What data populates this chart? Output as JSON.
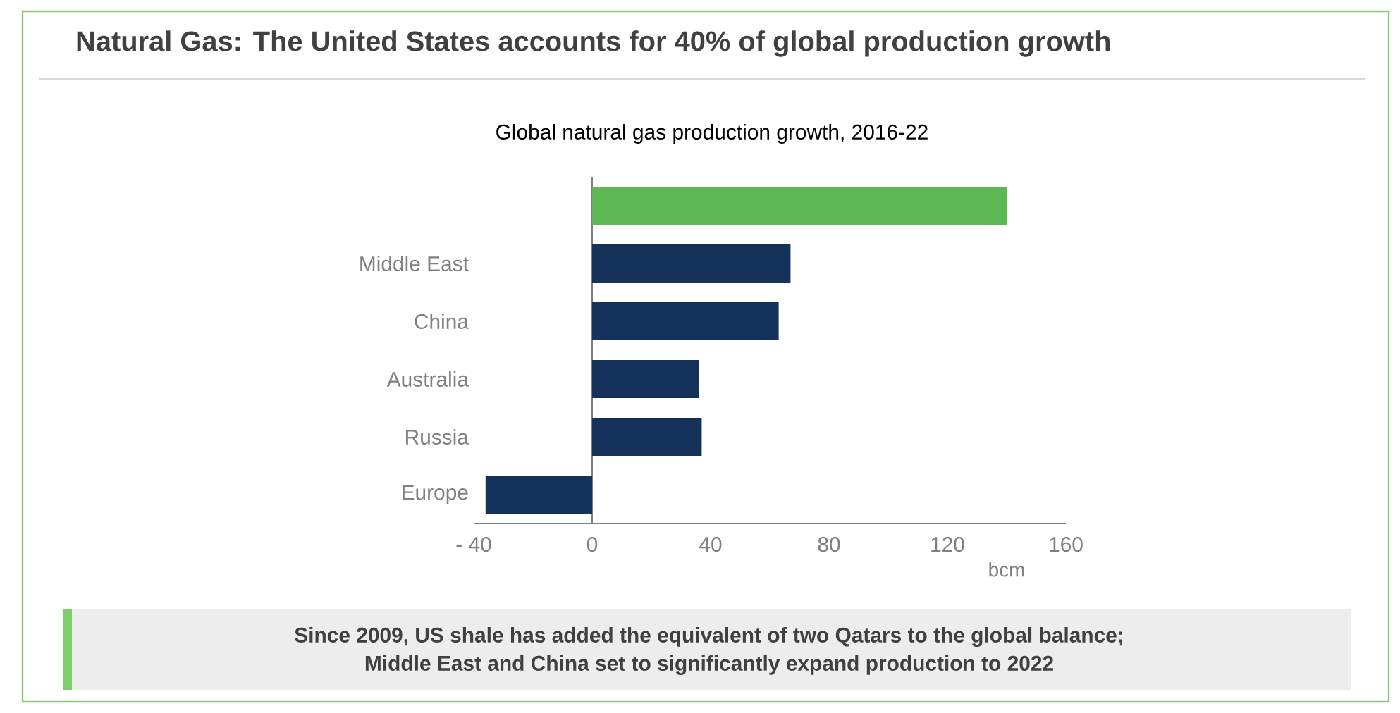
{
  "chart_data": {
    "type": "bar",
    "orientation": "horizontal",
    "title": "Natural Gas: The United States accounts for 40% of global production growth",
    "subtitle": "Global natural gas production growth, 2016-22",
    "xlabel": "bcm",
    "categories": [
      null,
      "Middle East",
      "China",
      "Australia",
      "Russia",
      "Europe"
    ],
    "values": [
      140,
      67,
      63,
      36,
      37,
      -36
    ],
    "colors": [
      "#5cb853",
      "#14325a",
      "#14325a",
      "#14325a",
      "#14325a",
      "#14325a"
    ],
    "xlim": [
      -40,
      160
    ],
    "xticks": [
      {
        "value": -40,
        "label": "- 40"
      },
      0,
      40,
      80,
      120,
      160
    ],
    "annotations": [
      "Since 2009, US shale has added the equivalent of two Qatars to the global balance;",
      "Middle East and China set to significantly expand production to 2022"
    ]
  }
}
